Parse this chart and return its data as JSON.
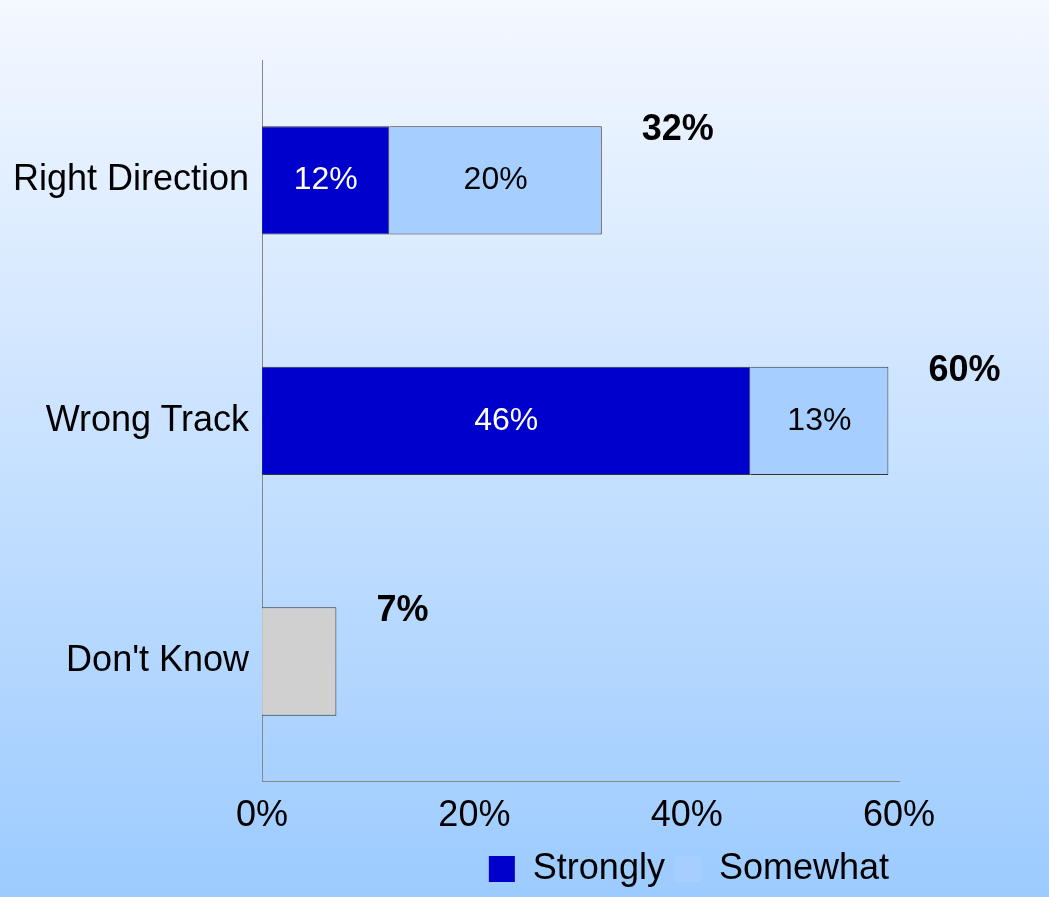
{
  "chart_data": {
    "type": "bar",
    "orientation": "horizontal",
    "stacked": true,
    "categories": [
      "Right Direction",
      "Wrong Track",
      "Don't Know"
    ],
    "series": [
      {
        "name": "Strongly",
        "color": "#0000cc",
        "values": [
          12,
          46,
          null
        ],
        "value_labels": [
          "12%",
          "46%",
          null
        ]
      },
      {
        "name": "Somewhat",
        "color": "#a6cfff",
        "values": [
          20,
          13,
          null
        ],
        "value_labels": [
          "20%",
          "13%",
          null
        ]
      },
      {
        "color": "#d0d0d0",
        "values": [
          null,
          null,
          7
        ]
      }
    ],
    "totals": [
      "32%",
      "60%",
      "7%"
    ],
    "xlim": [
      0,
      60
    ],
    "xticks": [
      {
        "value": 0,
        "label": "0%"
      },
      {
        "value": 20,
        "label": "20%"
      },
      {
        "value": 40,
        "label": "40%"
      },
      {
        "value": 60,
        "label": "60%"
      }
    ],
    "grid": false,
    "legend": "bottom right"
  }
}
